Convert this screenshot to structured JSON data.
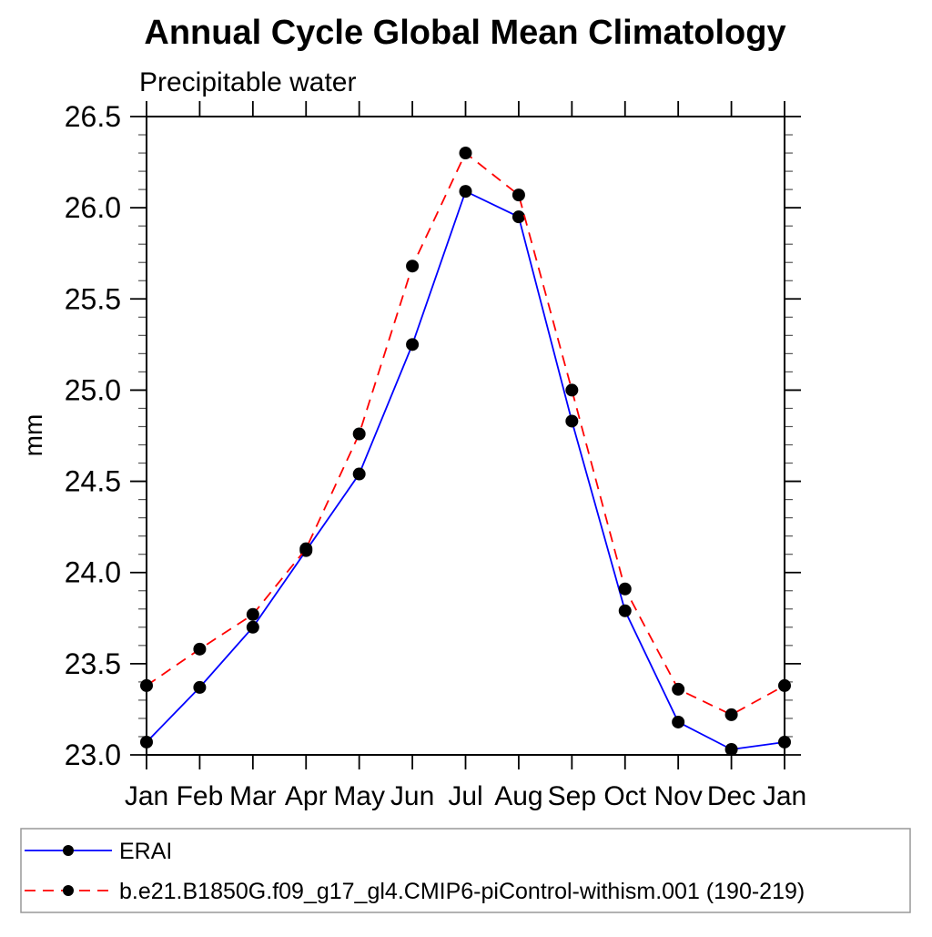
{
  "chart_data": {
    "type": "line",
    "title": "Annual Cycle Global Mean Climatology",
    "subtitle": "Precipitable water",
    "xlabel": "",
    "ylabel": "mm",
    "categories": [
      "Jan",
      "Feb",
      "Mar",
      "Apr",
      "May",
      "Jun",
      "Jul",
      "Aug",
      "Sep",
      "Oct",
      "Nov",
      "Dec",
      "Jan"
    ],
    "ylim": [
      23.0,
      26.5
    ],
    "y_ticks": {
      "values": [
        23.0,
        23.5,
        24.0,
        24.5,
        25.0,
        25.5,
        26.0,
        26.5
      ],
      "labels": [
        "23.0",
        "23.5",
        "24.0",
        "24.5",
        "25.0",
        "25.5",
        "26.0",
        "26.5"
      ]
    },
    "y_minor_step": 0.1,
    "grid": false,
    "legend_position": "bottom-left-box",
    "marker": "filled-circle",
    "marker_color": "#000000",
    "series": [
      {
        "name": "ERAI",
        "color": "#0000ff",
        "line_style": "solid",
        "values": [
          23.07,
          23.37,
          23.7,
          24.12,
          24.54,
          25.25,
          26.09,
          25.95,
          24.83,
          23.79,
          23.18,
          23.03,
          23.07
        ]
      },
      {
        "name": "b.e21.B1850G.f09_g17_gl4.CMIP6-piControl-withism.001 (190-219)",
        "color": "#ff0000",
        "line_style": "dashed",
        "values": [
          23.38,
          23.58,
          23.77,
          24.13,
          24.76,
          25.68,
          26.3,
          26.07,
          25.0,
          23.91,
          23.36,
          23.22,
          23.38
        ]
      }
    ]
  }
}
